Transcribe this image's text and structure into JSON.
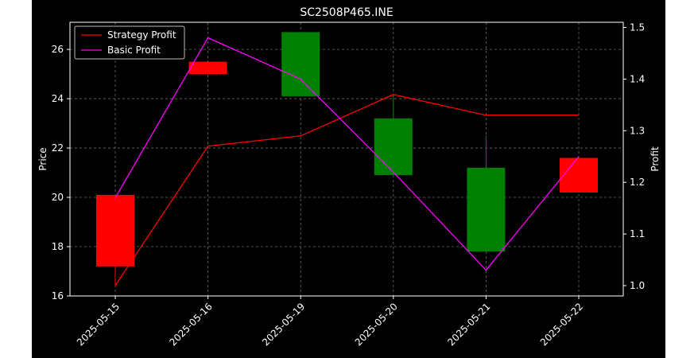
{
  "chart_data": {
    "type": "candlestick+line",
    "title": "SC2508P465.INE",
    "xlabel": "",
    "ylabel_left": "Price",
    "ylabel_right": "Profit",
    "categories": [
      "2025-05-15",
      "2025-05-16",
      "2025-05-19",
      "2025-05-20",
      "2025-05-21",
      "2025-05-22"
    ],
    "ylim_left": [
      16,
      27.1
    ],
    "yticks_left": [
      16,
      18,
      20,
      22,
      24,
      26
    ],
    "ylim_right": [
      0.98,
      1.51
    ],
    "yticks_right": [
      1.0,
      1.1,
      1.2,
      1.3,
      1.4,
      1.5
    ],
    "grid": true,
    "legend_position": "top-left",
    "candles": [
      {
        "date": "2025-05-15",
        "open": 20.1,
        "high": 20.1,
        "low": 16.4,
        "close": 17.2,
        "direction": "down"
      },
      {
        "date": "2025-05-16",
        "open": 25.5,
        "high": 25.5,
        "low": 25.0,
        "close": 25.0,
        "direction": "down"
      },
      {
        "date": "2025-05-19",
        "open": 24.1,
        "high": 26.7,
        "low": 24.1,
        "close": 26.7,
        "direction": "up"
      },
      {
        "date": "2025-05-20",
        "open": 20.9,
        "high": 24.1,
        "low": 20.9,
        "close": 23.2,
        "direction": "up"
      },
      {
        "date": "2025-05-21",
        "open": 17.8,
        "high": 22.5,
        "low": 17.8,
        "close": 21.2,
        "direction": "up"
      },
      {
        "date": "2025-05-22",
        "open": 21.6,
        "high": 21.6,
        "low": 20.2,
        "close": 20.2,
        "direction": "down"
      }
    ],
    "series": [
      {
        "name": "Strategy Profit",
        "color": "#ff0000",
        "axis": "right",
        "values": [
          1.0,
          1.27,
          1.29,
          1.37,
          1.33,
          1.33
        ]
      },
      {
        "name": "Basic Profit",
        "color": "#ff00ff",
        "axis": "right",
        "values": [
          1.17,
          1.48,
          1.4,
          1.22,
          1.03,
          1.25
        ]
      }
    ],
    "colors": {
      "up": "#008000",
      "down": "#ff0000",
      "background": "#000000",
      "axes": "#ffffff"
    }
  }
}
